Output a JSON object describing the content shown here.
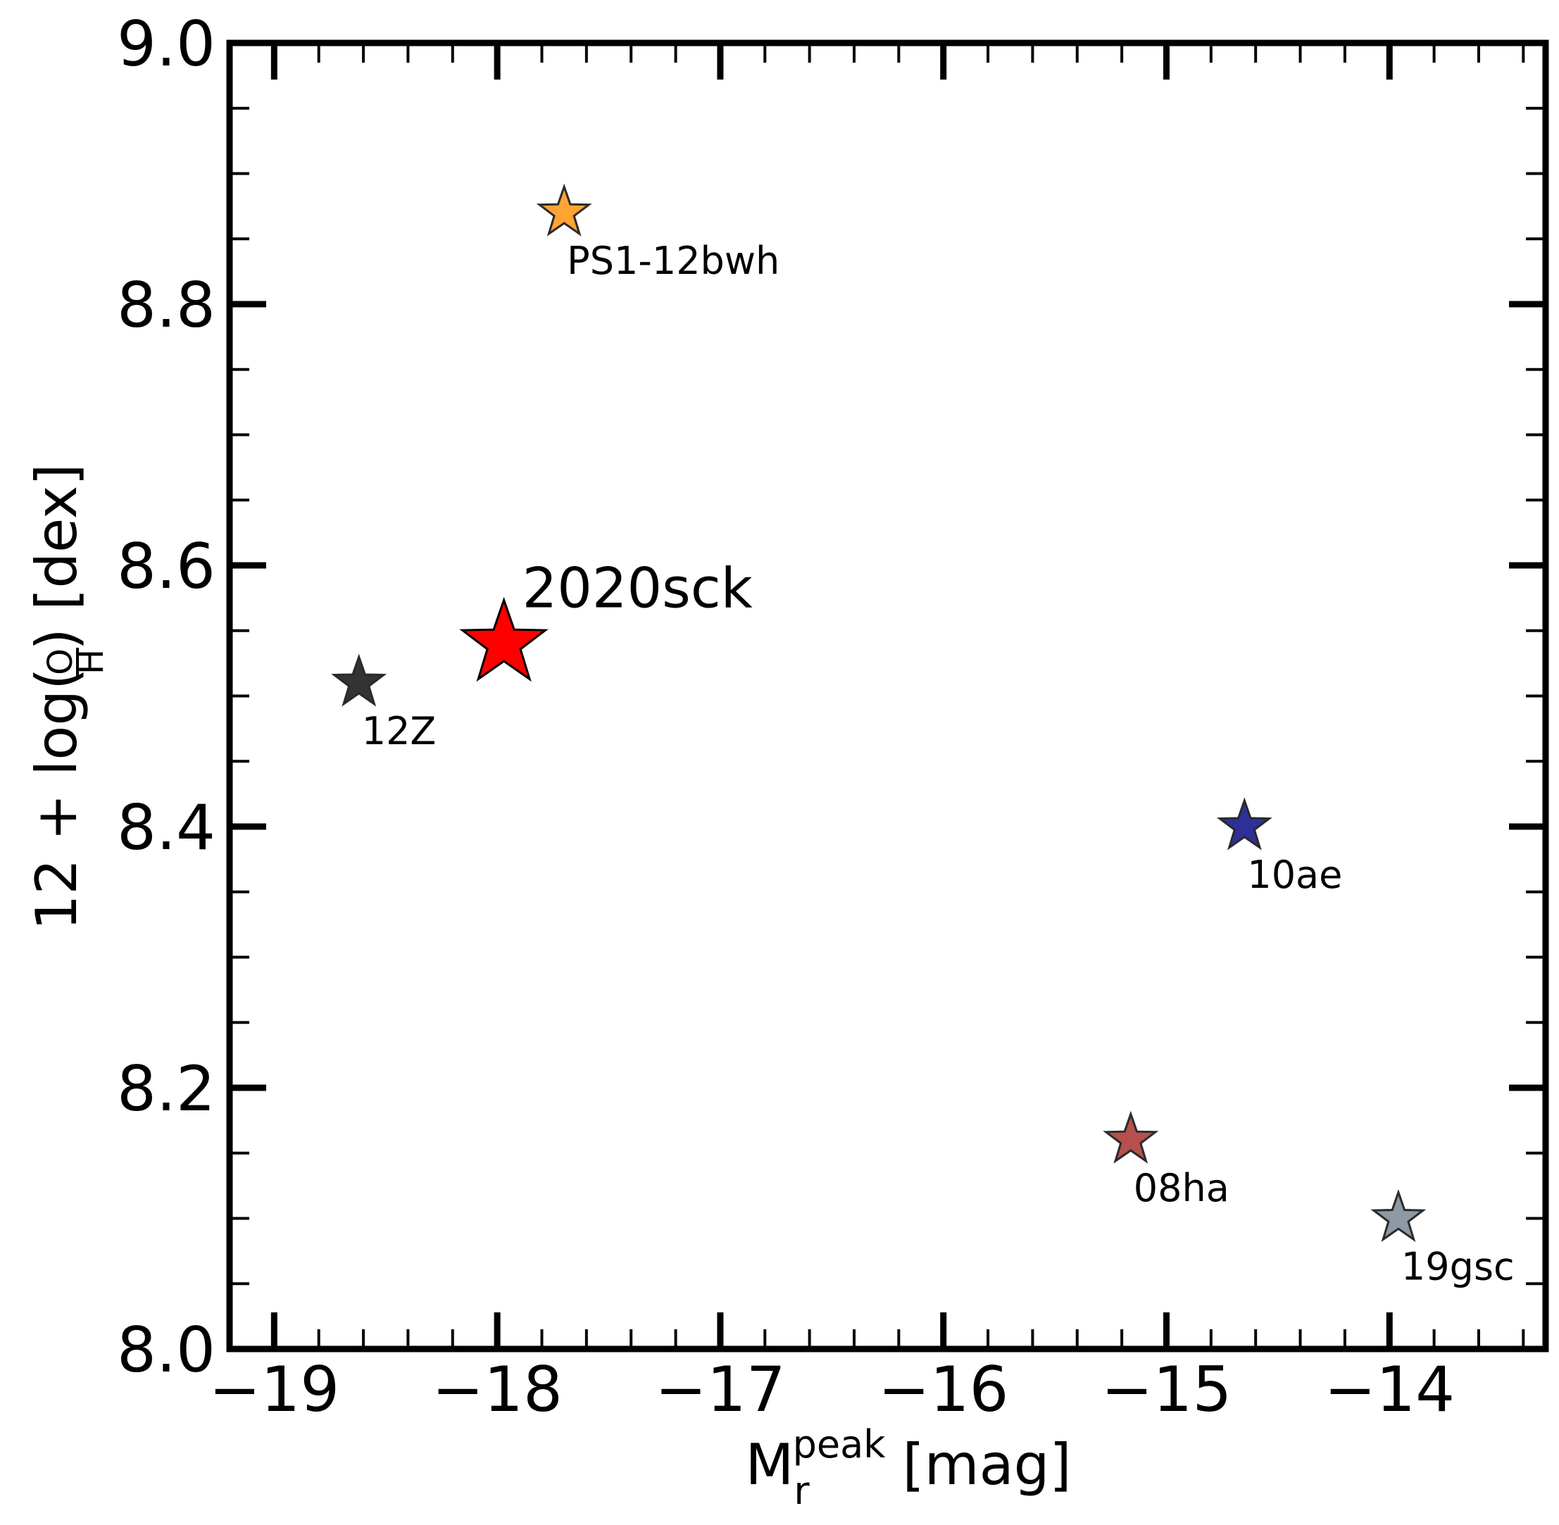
{
  "chart_data": {
    "type": "scatter",
    "title": "",
    "xlabel": {
      "main": "M",
      "subscript": "r",
      "superscript": "peak",
      "unit": "[mag]"
    },
    "ylabel": {
      "prefix": "12 + log(",
      "fraction_numerator": "O",
      "fraction_denominator": "H",
      "suffix": ") [dex]"
    },
    "xlim": [
      -19.2,
      -13.3
    ],
    "ylim": [
      8.0,
      9.0
    ],
    "x_major_ticks": [
      -19,
      -18,
      -17,
      -16,
      -15,
      -14
    ],
    "x_tick_labels": [
      "−19",
      "−18",
      "−17",
      "−16",
      "−15",
      "−14"
    ],
    "x_minor_step": 0.2,
    "y_major_ticks": [
      8.0,
      8.2,
      8.4,
      8.6,
      8.8,
      9.0
    ],
    "y_tick_labels": [
      "8.0",
      "8.2",
      "8.4",
      "8.6",
      "8.8",
      "9.0"
    ],
    "y_minor_step": 0.05,
    "grid": false,
    "marker": "star",
    "points": [
      {
        "label": "2020sck",
        "x": -17.97,
        "y": 8.54,
        "color": "#ff0000",
        "size": "large"
      },
      {
        "label": "PS1-12bwh",
        "x": -17.7,
        "y": 8.87,
        "color": "#ffa333",
        "size": "small"
      },
      {
        "label": "12Z",
        "x": -18.62,
        "y": 8.51,
        "color": "#333333",
        "size": "small"
      },
      {
        "label": "10ae",
        "x": -14.65,
        "y": 8.4,
        "color": "#2f2f9a",
        "size": "small"
      },
      {
        "label": "08ha",
        "x": -15.16,
        "y": 8.16,
        "color": "#b5504d",
        "size": "small"
      },
      {
        "label": "19gsc",
        "x": -13.96,
        "y": 8.1,
        "color": "#8d99a4",
        "size": "small"
      }
    ]
  }
}
